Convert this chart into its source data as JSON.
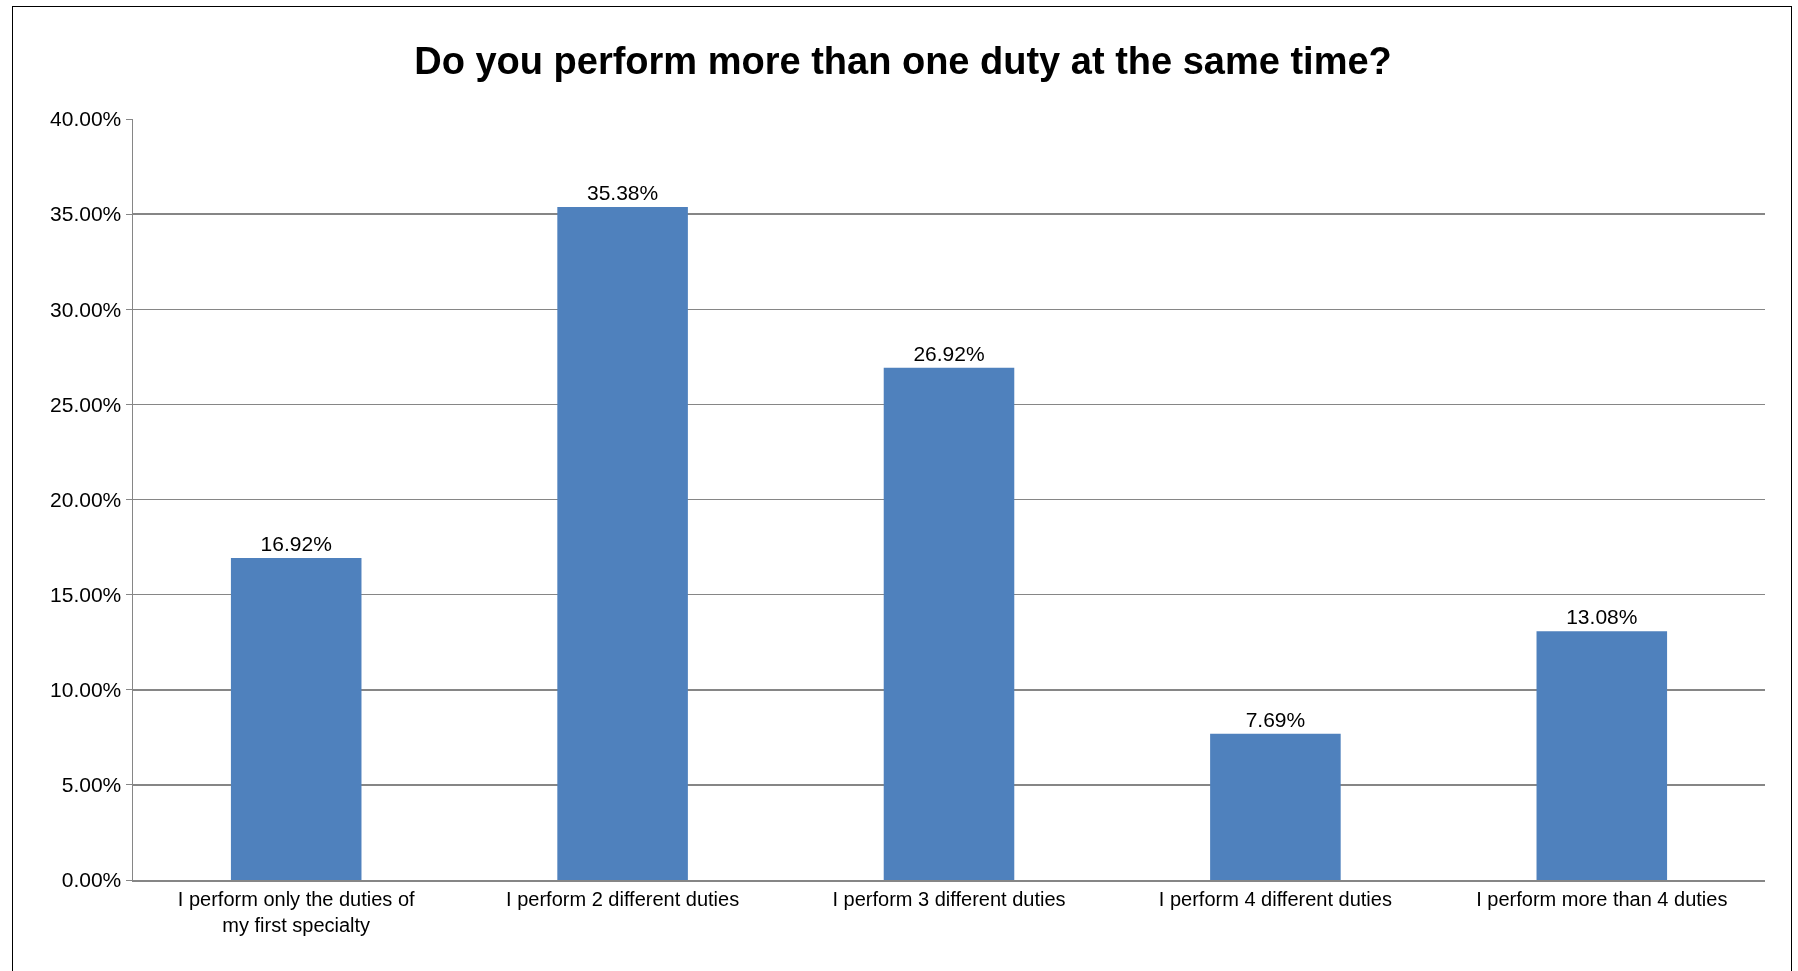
{
  "chart_data": {
    "type": "bar",
    "title": "Do you perform more than one duty at the same time?",
    "categories": [
      "I perform only the duties of my first specialty",
      "I perform 2 different duties",
      "I perform 3 different duties",
      "I perform 4 different duties",
      "I perform more than 4 duties"
    ],
    "values": [
      16.92,
      35.38,
      26.92,
      7.69,
      13.08
    ],
    "value_labels": [
      "16.92%",
      "35.38%",
      "26.92%",
      "7.69%",
      "13.08%"
    ],
    "color": "#4f81bd",
    "ylim": [
      0,
      40
    ],
    "yticks": [
      {
        "value": 0,
        "label": "0.00%"
      },
      {
        "value": 5,
        "label": "5.00%"
      },
      {
        "value": 10,
        "label": "10.00%"
      },
      {
        "value": 15,
        "label": "15.00%"
      },
      {
        "value": 20,
        "label": "20.00%"
      },
      {
        "value": 25,
        "label": "25.00%"
      },
      {
        "value": 30,
        "label": "30.00%"
      },
      {
        "value": 35,
        "label": "35.00%"
      },
      {
        "value": 40,
        "label": "40.00%"
      }
    ],
    "grid": "y",
    "legend": false
  }
}
